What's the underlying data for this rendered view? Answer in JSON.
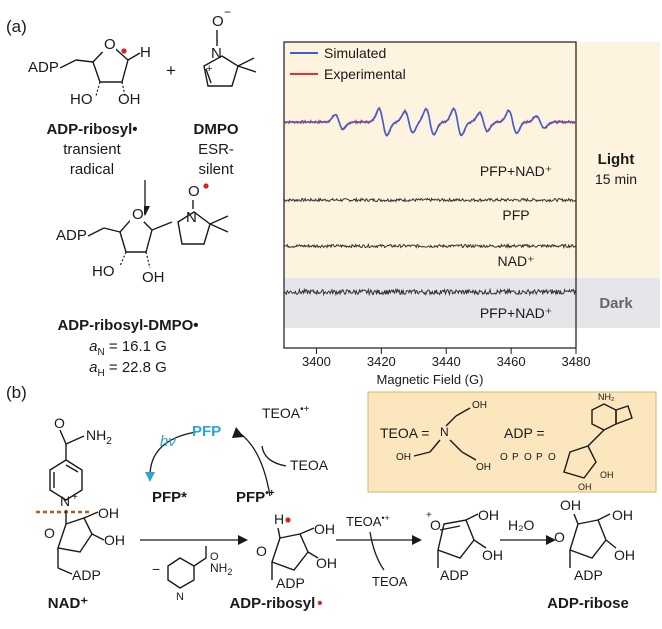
{
  "panel_a": {
    "label": "(a)",
    "radical": {
      "name": "ADP-ribosyl•",
      "line2": "transient",
      "line3": "radical",
      "adp": "ADP",
      "h": "H",
      "o": "O",
      "ho": "HO",
      "oh": "OH"
    },
    "plus": "+",
    "dmpo": {
      "name": "DMPO",
      "line2": "ESR-",
      "line3": "silent",
      "o": "O",
      "n": "N",
      "minus": "−",
      "plusc": "+"
    },
    "adduct": {
      "name": "ADP-ribosyl-DMPO•",
      "an": "a",
      "an_sub": "N",
      "an_val": " = 16.1 G",
      "ah": "a",
      "ah_sub": "H",
      "ah_val": " = 22.8 G",
      "adp": "ADP",
      "o": "O",
      "n": "N",
      "ho": "HO",
      "oh": "OH"
    }
  },
  "esr": {
    "legend": [
      "Simulated",
      "Experimental"
    ],
    "colors": {
      "simulated": "#3b5fd6",
      "experimental": "#e8322e",
      "light_bg": "#fdf3de",
      "dark_bg": "#e6e6ea"
    },
    "traces": [
      "PFP+NAD⁺",
      "PFP",
      "NAD⁺",
      "PFP+NAD⁺"
    ],
    "side_light": [
      "Light",
      "15 min"
    ],
    "side_dark": "Dark",
    "xlabel": "Magnetic Field (G)",
    "ticks": [
      "3400",
      "3420",
      "3440",
      "3460",
      "3480"
    ]
  },
  "chart_data": {
    "type": "line",
    "xlabel": "Magnetic Field (G)",
    "xlim": [
      3390,
      3480
    ],
    "x_ticks": [
      3400,
      3420,
      3440,
      3460,
      3480
    ],
    "series": [
      {
        "name": "Simulated",
        "color": "#3b5fd6"
      },
      {
        "name": "Experimental",
        "color": "#e8322e"
      }
    ],
    "line_positions_G": [
      3407,
      3420.5,
      3428.5,
      3435,
      3443.5,
      3451.5,
      3460.5,
      3469
    ],
    "line_amplitudes": [
      0.55,
      1.0,
      0.8,
      0.95,
      1.0,
      0.7,
      0.85,
      0.45
    ],
    "trace_labels": [
      "PFP+NAD⁺",
      "PFP",
      "NAD⁺",
      "PFP+NAD⁺"
    ],
    "conditions": [
      "Light 15 min",
      "Light 15 min",
      "Light 15 min",
      "Dark"
    ]
  },
  "panel_b": {
    "label": "(b)",
    "hv": "hν",
    "pfp": "PFP",
    "pfp_star": "PFP*",
    "pfp_rad": "PFP",
    "pfp_rad_sup": "•+",
    "teoa": "TEOA",
    "teoa_rad": "TEOA",
    "teoa_rad_sup": "•+",
    "nh2": "NH",
    "nh2_sub": "2",
    "nad": "NAD⁺",
    "adp_ribosyl": "ADP-ribosyl",
    "adp_ribose": "ADP-ribose",
    "h2o": "H₂O",
    "teoa_product": "TEOA",
    "teoa_over_arrow": "TEOA",
    "teoa_over_arrow_sup": "•+",
    "atoms": {
      "o": "O",
      "oh": "OH",
      "adp": "ADP",
      "h": "H",
      "n": "N",
      "nplus": "N",
      "plus": "+",
      "minus": "−",
      "h2": "H"
    },
    "legend_box": {
      "teoa_eq": "TEOA =",
      "adp_eq": "ADP =",
      "oh": "OH",
      "n": "N",
      "o": "O",
      "p": "P",
      "nh2": "NH₂"
    }
  }
}
